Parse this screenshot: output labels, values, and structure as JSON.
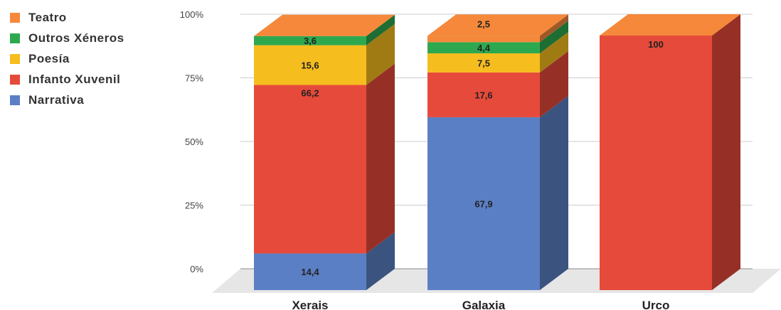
{
  "chart_data": {
    "type": "bar",
    "stacked": true,
    "percent": true,
    "three_d": true,
    "categories": [
      "Xerais",
      "Galaxia",
      "Urco"
    ],
    "series": [
      {
        "name": "Narrativa",
        "color": "#5b7fc4",
        "values": [
          14.4,
          67.9,
          0
        ],
        "labels": [
          "14,4",
          "67,9",
          ""
        ]
      },
      {
        "name": "Infanto Xuvenil",
        "color": "#e64a3a",
        "values": [
          66.2,
          17.6,
          100
        ],
        "labels": [
          "66,2",
          "17,6",
          "100"
        ]
      },
      {
        "name": "Poesía",
        "color": "#f6bd1e",
        "values": [
          15.6,
          7.5,
          0
        ],
        "labels": [
          "15,6",
          "7,5",
          ""
        ]
      },
      {
        "name": "Outros Xéneros",
        "color": "#2ea84e",
        "values": [
          3.6,
          4.4,
          0
        ],
        "labels": [
          "3,6",
          "4,4",
          ""
        ]
      },
      {
        "name": "Teatro",
        "color": "#f5883a",
        "values": [
          0,
          2.5,
          0
        ],
        "labels": [
          "",
          "2,5",
          ""
        ]
      }
    ],
    "y_ticks": [
      "0%",
      "25%",
      "50%",
      "75%",
      "100%"
    ],
    "ylim": [
      0,
      100
    ],
    "grid": true,
    "legend_position": "top-left"
  }
}
